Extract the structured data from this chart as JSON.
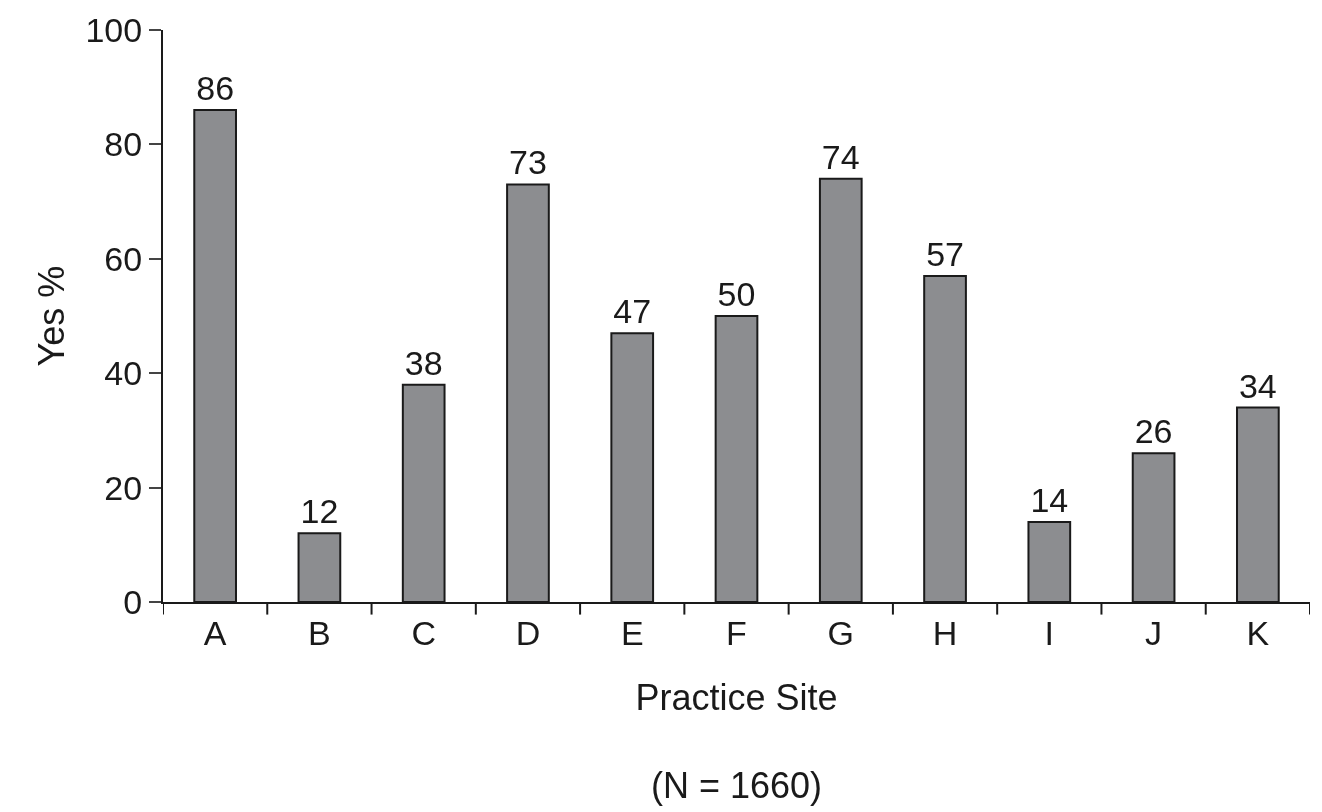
{
  "chart_data": {
    "type": "bar",
    "xlabel": "Practice Site",
    "ylabel": "Yes %",
    "categories": [
      "A",
      "B",
      "C",
      "D",
      "E",
      "F",
      "G",
      "H",
      "I",
      "J",
      "K"
    ],
    "values": [
      86,
      12,
      38,
      73,
      47,
      50,
      74,
      57,
      14,
      26,
      34
    ],
    "color": "#8c8d90",
    "ylim": [
      0,
      100
    ],
    "yticks": [
      0,
      20,
      40,
      60,
      80,
      100
    ],
    "data_labels": true,
    "legend": false,
    "annotations": [
      "(N = 1660)"
    ]
  }
}
